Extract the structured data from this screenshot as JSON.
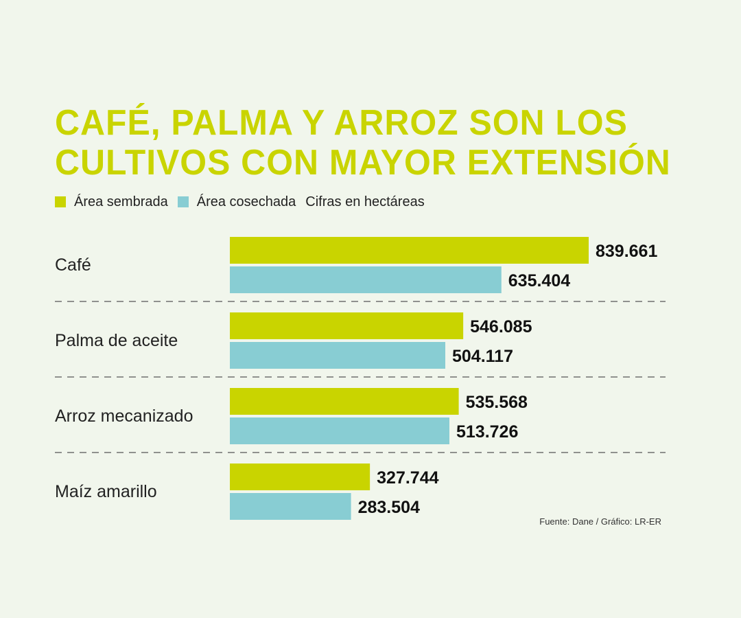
{
  "chart_data": {
    "type": "bar",
    "orientation": "horizontal",
    "title": "CAFÉ, PALMA Y ARROZ SON LOS CULTIVOS CON MAYOR EXTENSIÓN",
    "title_lines": [
      "CAFÉ, PALMA Y ARROZ SON LOS",
      "CULTIVOS CON MAYOR EXTENSIÓN"
    ],
    "note": "Cifras en hectáreas",
    "source": "Fuente: Dane / Gráfico: LR-ER",
    "categories": [
      "Café",
      "Palma de aceite",
      "Arroz mecanizado",
      "Maíz amarillo"
    ],
    "series": [
      {
        "name": "Área sembrada",
        "color": "#c9d400",
        "values": [
          839661,
          546085,
          535568,
          327744
        ],
        "labels": [
          "839.661",
          "546.085",
          "535.568",
          "327.744"
        ]
      },
      {
        "name": "Área cosechada",
        "color": "#88cdd3",
        "values": [
          635404,
          504117,
          513726,
          283504
        ],
        "labels": [
          "635.404",
          "504.117",
          "513.726",
          "283.504"
        ]
      }
    ],
    "xlim": [
      0,
      839661
    ],
    "grid": false,
    "legend": "top-left",
    "separator": "dashed"
  }
}
